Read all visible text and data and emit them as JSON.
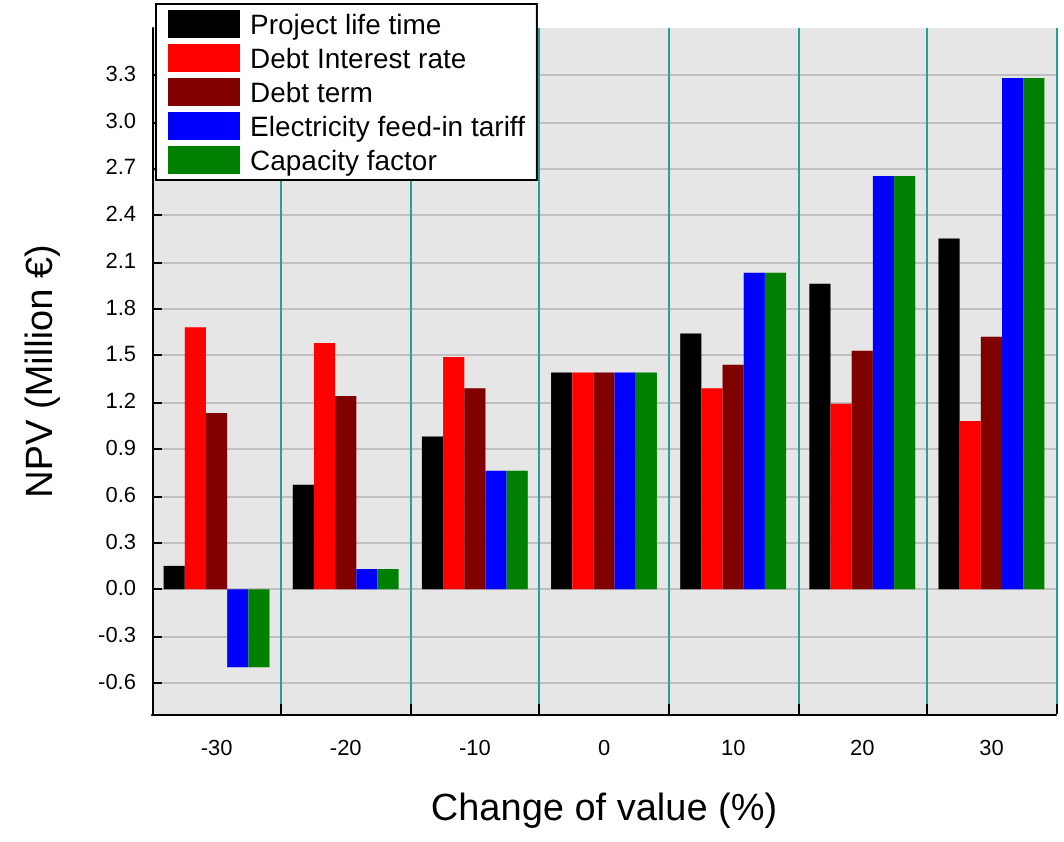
{
  "chart_data": {
    "type": "bar",
    "xlabel": "Change of value (%)",
    "ylabel": "NPV (Million €)",
    "categories": [
      "-30",
      "-20",
      "-10",
      "0",
      "10",
      "20",
      "30"
    ],
    "series": [
      {
        "name": "Project life time",
        "color": "#000000",
        "values": [
          0.15,
          0.67,
          0.98,
          1.39,
          1.64,
          1.96,
          2.25
        ]
      },
      {
        "name": "Debt Interest rate",
        "color": "#ff0000",
        "values": [
          1.68,
          1.58,
          1.49,
          1.39,
          1.29,
          1.19,
          1.08
        ]
      },
      {
        "name": "Debt term",
        "color": "#800000",
        "values": [
          1.13,
          1.24,
          1.29,
          1.39,
          1.44,
          1.53,
          1.62
        ]
      },
      {
        "name": "Electricity feed-in tariff",
        "color": "#0000ff",
        "values": [
          -0.5,
          0.13,
          0.76,
          1.39,
          2.03,
          2.65,
          3.28
        ]
      },
      {
        "name": "Capacity factor",
        "color": "#008000",
        "values": [
          -0.5,
          0.13,
          0.76,
          1.39,
          2.03,
          2.65,
          3.28
        ]
      }
    ],
    "ylim": [
      -0.8,
      3.6
    ],
    "yticks": [
      -0.6,
      -0.3,
      {
        "value": 0,
        "label": "0.0"
      },
      0.3,
      0.6,
      0.9,
      1.2,
      1.5,
      1.8,
      2.1,
      2.4,
      2.7,
      {
        "value": 3,
        "label": "3.0"
      },
      3.3
    ],
    "grid": true,
    "legend": "top left"
  }
}
